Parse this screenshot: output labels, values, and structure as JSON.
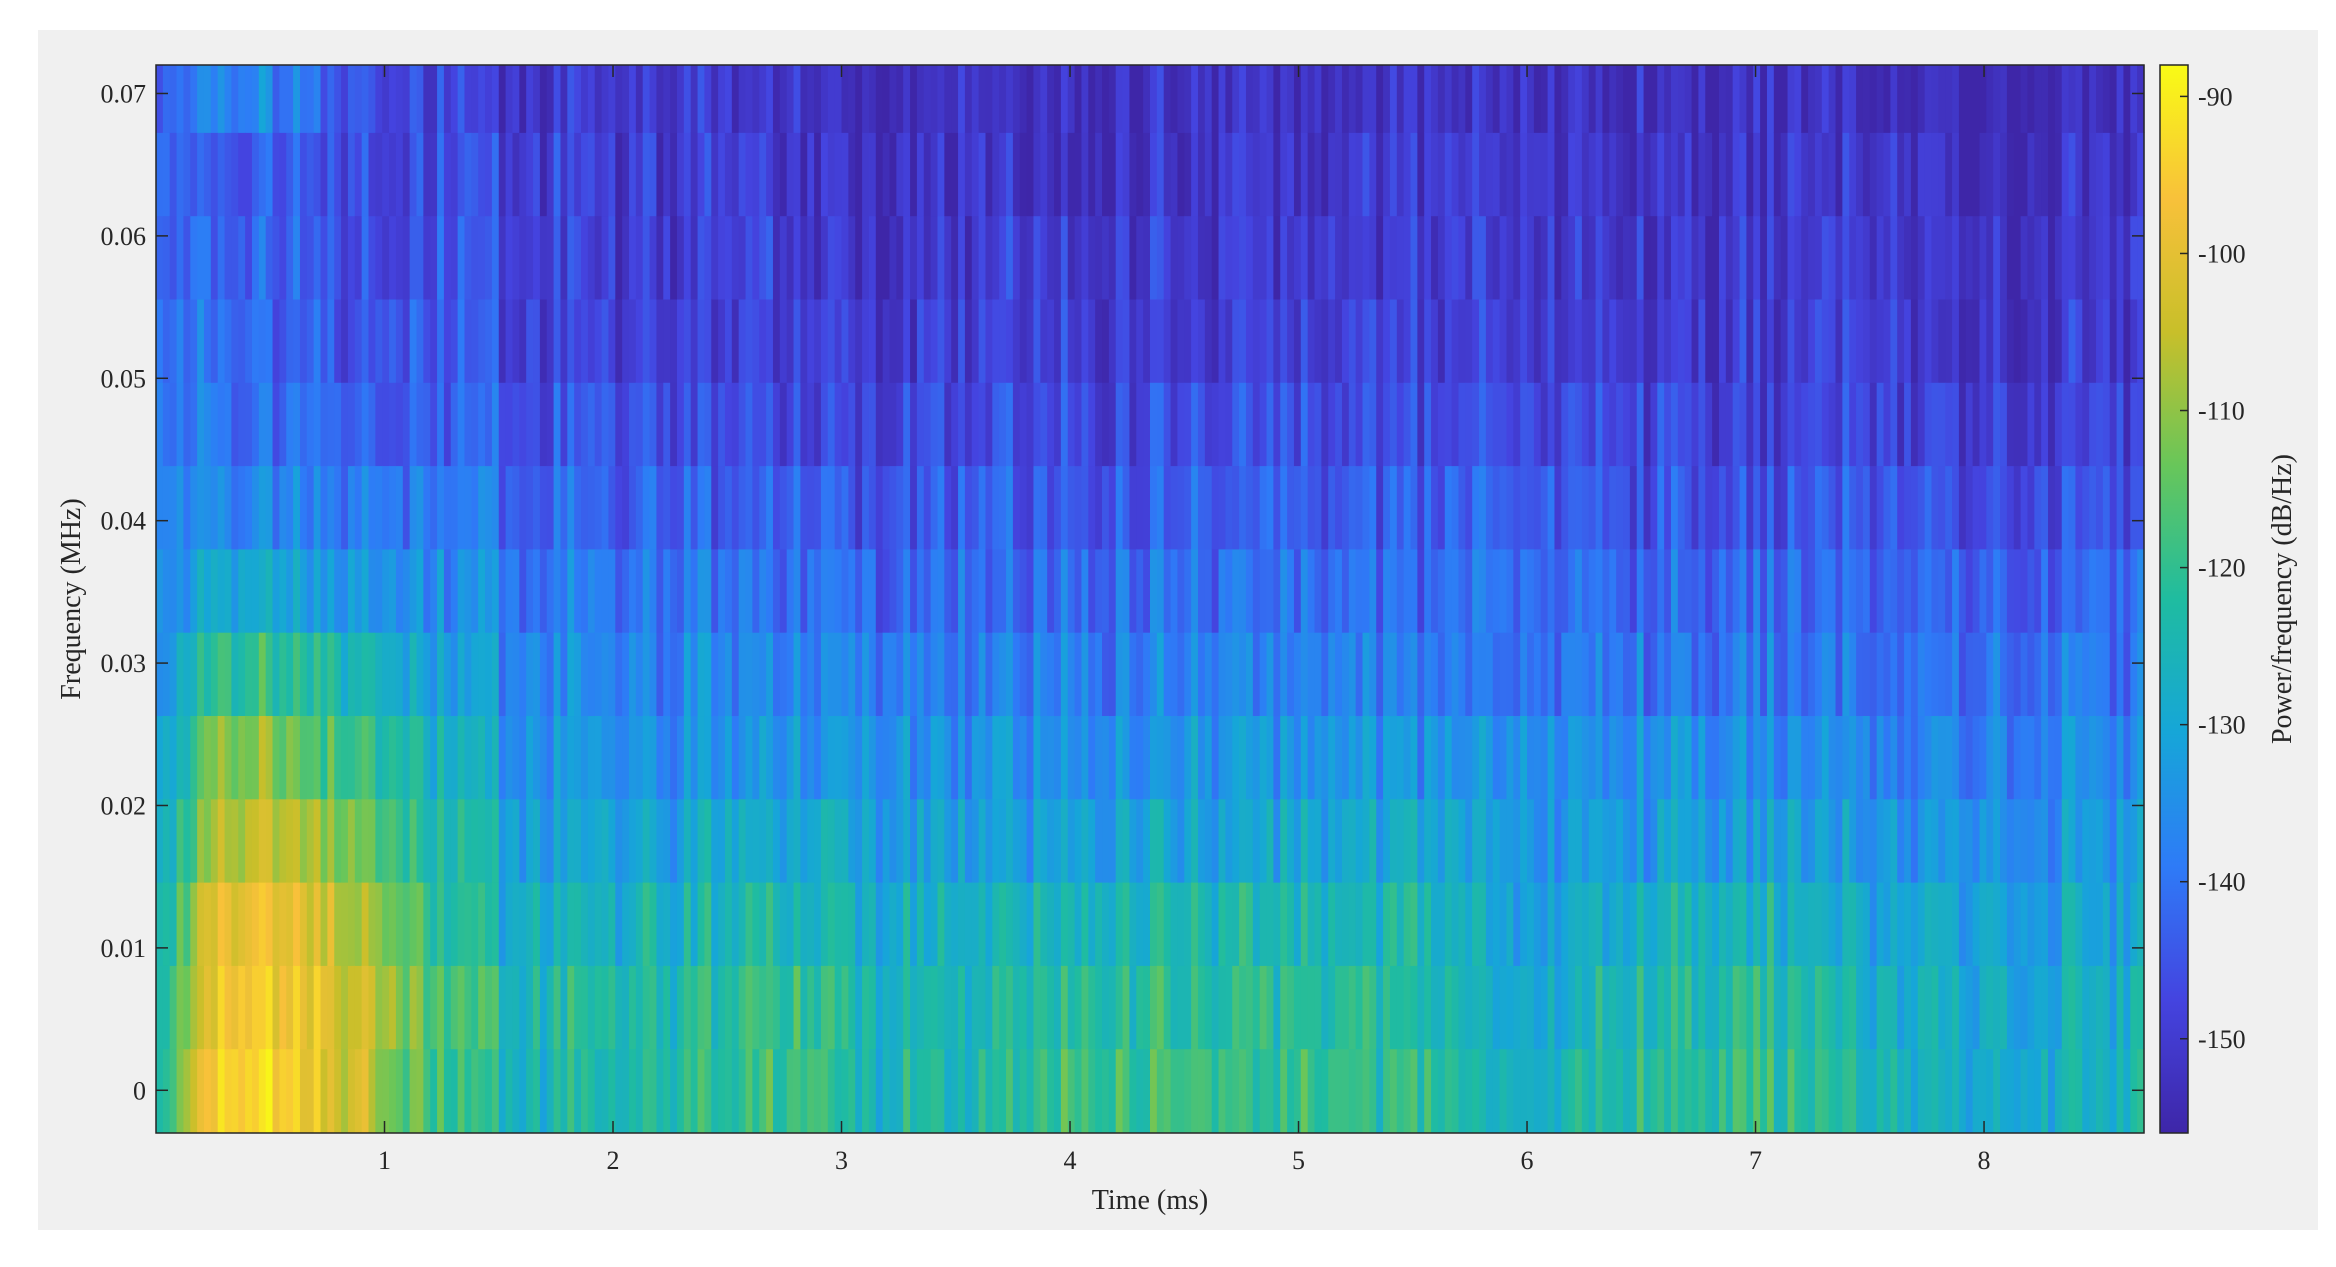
{
  "chart_data": {
    "type": "heatmap",
    "title": "",
    "xlabel": "Time (ms)",
    "ylabel": "Frequency (MHz)",
    "colorbar_label": "Power/frequency (dB/Hz)",
    "colormap": "parula",
    "x_range": [
      0.0,
      8.7
    ],
    "y_range": [
      -0.003,
      0.072
    ],
    "x_ticks": [
      "1",
      "2",
      "3",
      "4",
      "5",
      "6",
      "7",
      "8"
    ],
    "x_tick_values": [
      1,
      2,
      3,
      4,
      5,
      6,
      7,
      8
    ],
    "y_ticks": [
      "0",
      "0.01",
      "0.02",
      "0.03",
      "0.04",
      "0.05",
      "0.06",
      "0.07"
    ],
    "y_tick_values": [
      0,
      0.01,
      0.02,
      0.03,
      0.04,
      0.05,
      0.06,
      0.07
    ],
    "color_range": [
      -156,
      -88
    ],
    "colorbar_ticks": [
      "-90",
      "-100",
      "-110",
      "-120",
      "-130",
      "-140",
      "-150"
    ],
    "colorbar_tick_values": [
      -90,
      -100,
      -110,
      -120,
      -130,
      -140,
      -150
    ],
    "frequency_bins": [
      0.0,
      0.00585,
      0.0117,
      0.01755,
      0.0234,
      0.02925,
      0.0351,
      0.04095,
      0.0468,
      0.05265,
      0.0585,
      0.06435,
      0.0702
    ],
    "profile_time": [
      0.0,
      0.3,
      0.6,
      0.9,
      1.2,
      1.5,
      2.0,
      2.9,
      3.0,
      3.5,
      4.0,
      4.2,
      5.5,
      6.0,
      6.5,
      7.0,
      7.5,
      8.0,
      8.7
    ],
    "profile_power": [
      [
        -125,
        -92,
        -95,
        -103,
        -118,
        -124,
        -124,
        -116,
        -124,
        -124,
        -118,
        -119,
        -122,
        -128,
        -122,
        -120,
        -125,
        -128,
        -126
      ],
      [
        -127,
        -94,
        -97,
        -102,
        -116,
        -122,
        -124,
        -118,
        -123,
        -126,
        -120,
        -121,
        -124,
        -130,
        -123,
        -121,
        -126,
        -129,
        -127
      ],
      [
        -130,
        -96,
        -100,
        -106,
        -120,
        -126,
        -127,
        -123,
        -127,
        -128,
        -124,
        -124,
        -126,
        -132,
        -127,
        -125,
        -129,
        -131,
        -130
      ],
      [
        -132,
        -104,
        -106,
        -112,
        -124,
        -129,
        -131,
        -128,
        -131,
        -132,
        -130,
        -130,
        -131,
        -134,
        -132,
        -131,
        -133,
        -134,
        -133
      ],
      [
        -134,
        -110,
        -113,
        -118,
        -127,
        -132,
        -134,
        -133,
        -134,
        -135,
        -134,
        -134,
        -135,
        -136,
        -135,
        -135,
        -136,
        -137,
        -136
      ],
      [
        -136,
        -119,
        -121,
        -124,
        -131,
        -135,
        -137,
        -137,
        -138,
        -138,
        -138,
        -138,
        -139,
        -140,
        -139,
        -139,
        -140,
        -140,
        -140
      ],
      [
        -138,
        -128,
        -130,
        -132,
        -135,
        -138,
        -140,
        -140,
        -142,
        -141,
        -141,
        -141,
        -142,
        -142,
        -142,
        -142,
        -142,
        -143,
        -142
      ],
      [
        -140,
        -135,
        -136,
        -138,
        -139,
        -141,
        -143,
        -143,
        -146,
        -144,
        -144,
        -144,
        -145,
        -145,
        -145,
        -145,
        -144,
        -146,
        -145
      ],
      [
        -141,
        -139,
        -140,
        -142,
        -143,
        -144,
        -146,
        -146,
        -149,
        -147,
        -147,
        -147,
        -148,
        -148,
        -148,
        -148,
        -147,
        -149,
        -148
      ],
      [
        -142,
        -141,
        -142,
        -144,
        -145,
        -146,
        -148,
        -148,
        -151,
        -149,
        -149,
        -149,
        -150,
        -150,
        -150,
        -150,
        -149,
        -151,
        -150
      ],
      [
        -143,
        -142,
        -143,
        -145,
        -146,
        -147,
        -149,
        -149,
        -152,
        -150,
        -150,
        -150,
        -151,
        -151,
        -151,
        -151,
        -150,
        -152,
        -151
      ],
      [
        -144,
        -143,
        -144,
        -146,
        -147,
        -148,
        -150,
        -150,
        -153,
        -151,
        -151,
        -151,
        -152,
        -152,
        -152,
        -152,
        -151,
        -153,
        -152
      ],
      [
        -146,
        -136,
        -138,
        -145,
        -148,
        -149,
        -151,
        -151,
        -154,
        -152,
        -152,
        -152,
        -153,
        -153,
        -153,
        -153,
        -152,
        -154,
        -153
      ]
    ]
  }
}
